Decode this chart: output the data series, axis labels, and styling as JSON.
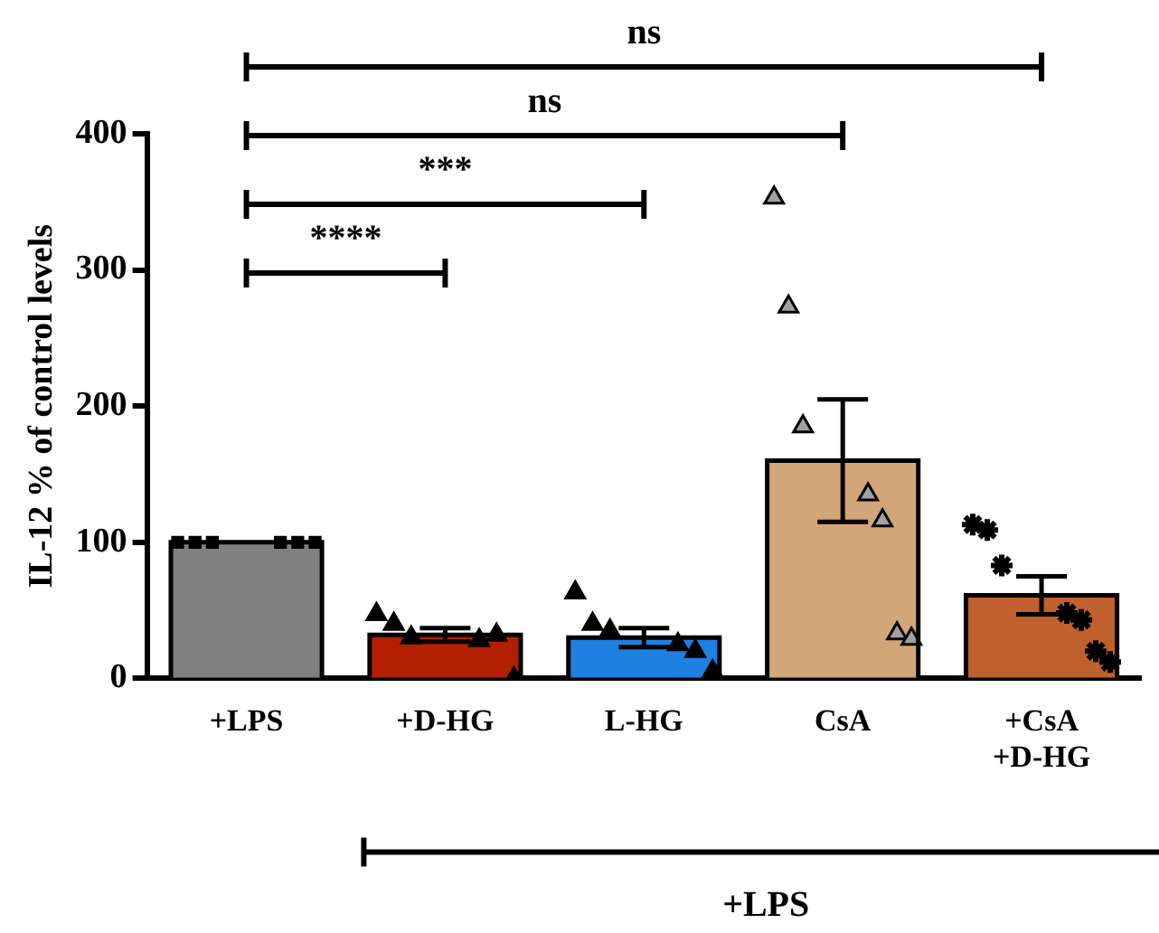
{
  "chart_data": {
    "type": "bar",
    "ylabel": "IL-12 % of control levels",
    "categories": [
      "+LPS",
      "+D-HG",
      "L-HG",
      "CsA",
      "+CsA +D-HG"
    ],
    "values": [
      100,
      32,
      30,
      160,
      61
    ],
    "colors": [
      "#808080",
      "#b22000",
      "#1e80e0",
      "#d2a679",
      "#c0602c"
    ],
    "errors": [
      null,
      5,
      7,
      45,
      14
    ],
    "ylim": [
      0,
      400
    ],
    "yticks": [
      0,
      100,
      200,
      300,
      400
    ],
    "grid": false,
    "legend": false,
    "series": [
      {
        "type": "scatter",
        "marker": "square",
        "color": "#000000",
        "x": [
          "+LPS",
          "+LPS",
          "+LPS",
          "+LPS",
          "+LPS",
          "+LPS"
        ],
        "values": [
          100,
          100,
          100,
          100,
          100,
          100
        ]
      },
      {
        "type": "scatter",
        "marker": "triangle",
        "color": "#000000",
        "x": [
          "+D-HG",
          "+D-HG",
          "+D-HG",
          "+D-HG",
          "+D-HG",
          "+D-HG"
        ],
        "values": [
          47,
          40,
          30,
          28,
          32,
          0
        ]
      },
      {
        "type": "scatter",
        "marker": "triangle",
        "color": "#000000",
        "x": [
          "L-HG",
          "L-HG",
          "L-HG",
          "L-HG",
          "L-HG",
          "L-HG"
        ],
        "values": [
          63,
          40,
          35,
          25,
          20,
          5
        ]
      },
      {
        "type": "scatter",
        "marker": "triangle",
        "color": "#a0a0a0",
        "x": [
          "CsA",
          "CsA",
          "CsA",
          "CsA",
          "CsA",
          "CsA",
          "CsA"
        ],
        "values": [
          353,
          273,
          185,
          135,
          116,
          33,
          29
        ]
      },
      {
        "type": "scatter",
        "marker": "cross",
        "color": "#000000",
        "x": [
          "+CsA +D-HG",
          "+CsA +D-HG",
          "+CsA +D-HG",
          "+CsA +D-HG",
          "+CsA +D-HG",
          "+CsA +D-HG",
          "+CsA +D-HG"
        ],
        "values": [
          113,
          109,
          83,
          48,
          43,
          20,
          12
        ]
      }
    ],
    "annotations": [
      "ns",
      "ns",
      "***",
      "****",
      "+LPS"
    ]
  }
}
